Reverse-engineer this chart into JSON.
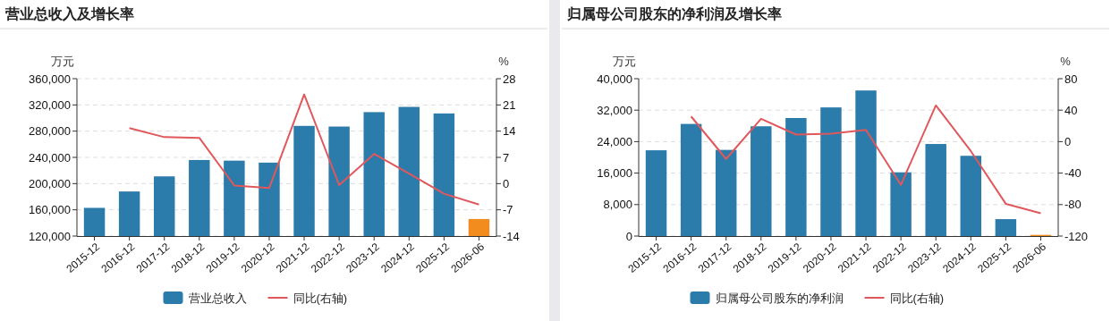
{
  "chart_data": [
    {
      "type": "bar",
      "title": "营业总收入及增长率",
      "ylabel": "万元",
      "y2label": "%",
      "categories": [
        "2015-12",
        "2016-12",
        "2017-12",
        "2018-12",
        "2019-12",
        "2020-12",
        "2021-12",
        "2022-12",
        "2023-12",
        "2024-12",
        "2025-12",
        "2026-06"
      ],
      "ylim": [
        120000,
        360000
      ],
      "yticks": [
        {
          "value": 120000,
          "label": "120,000"
        },
        {
          "value": 160000,
          "label": "160,000"
        },
        {
          "value": 200000,
          "label": "200,000"
        },
        {
          "value": 240000,
          "label": "240,000"
        },
        {
          "value": 280000,
          "label": "280,000"
        },
        {
          "value": 320000,
          "label": "320,000"
        },
        {
          "value": 360000,
          "label": "360,000"
        }
      ],
      "y2lim": [
        -14,
        28
      ],
      "y2ticks": [
        -14,
        -7,
        0,
        7,
        14,
        21,
        28
      ],
      "grid": "y",
      "legend": "bottom",
      "series": [
        {
          "name": "营业总收入",
          "color": "#2b7bab",
          "colors": [
            "#2b7bab",
            "#2b7bab",
            "#2b7bab",
            "#2b7bab",
            "#2b7bab",
            "#2b7bab",
            "#2b7bab",
            "#2b7bab",
            "#2b7bab",
            "#2b7bab",
            "#2b7bab",
            "#f28c1e"
          ],
          "values": [
            163000,
            188000,
            211000,
            236000,
            235000,
            232000,
            288000,
            287000,
            309000,
            317000,
            307000,
            146000
          ]
        },
        {
          "name": "同比(右轴)",
          "type": "line",
          "axis": "y2",
          "color": "#e0585c",
          "values": [
            null,
            14.8,
            12.4,
            12.2,
            -0.5,
            -1.2,
            23.8,
            -0.4,
            7.9,
            2.7,
            -2.7,
            -5.6
          ]
        }
      ]
    },
    {
      "type": "bar",
      "title": "归属母公司股东的净利润及增长率",
      "ylabel": "万元",
      "y2label": "%",
      "categories": [
        "2015-12",
        "2016-12",
        "2017-12",
        "2018-12",
        "2019-12",
        "2020-12",
        "2021-12",
        "2022-12",
        "2023-12",
        "2024-12",
        "2025-12",
        "2026-06"
      ],
      "ylim": [
        0,
        40000
      ],
      "yticks": [
        0,
        {
          "value": 8000,
          "label": "8,000"
        },
        {
          "value": 16000,
          "label": "16,000"
        },
        {
          "value": 24000,
          "label": "24,000"
        },
        {
          "value": 32000,
          "label": "32,000"
        },
        {
          "value": 40000,
          "label": "40,000"
        }
      ],
      "y2lim": [
        -120,
        80
      ],
      "y2ticks": [
        -120,
        -80,
        -40,
        0,
        40,
        80
      ],
      "grid": "y",
      "legend": "bottom",
      "series": [
        {
          "name": "归属母公司股东的净利润",
          "color": "#2b7bab",
          "colors": [
            "#2b7bab",
            "#2b7bab",
            "#2b7bab",
            "#2b7bab",
            "#2b7bab",
            "#2b7bab",
            "#2b7bab",
            "#2b7bab",
            "#2b7bab",
            "#2b7bab",
            "#2b7bab",
            "#f28c1e"
          ],
          "values": [
            21800,
            28500,
            21900,
            27900,
            30000,
            32700,
            37000,
            16200,
            23400,
            20400,
            4300,
            300
          ]
        },
        {
          "name": "同比(右轴)",
          "type": "line",
          "axis": "y2",
          "color": "#e0585c",
          "values": [
            null,
            32,
            -22,
            29,
            9,
            10,
            15,
            -55,
            46,
            -12,
            -79,
            -91
          ]
        }
      ]
    }
  ]
}
